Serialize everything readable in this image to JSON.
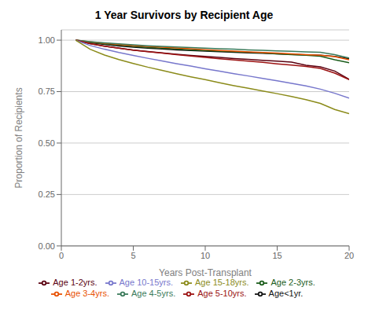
{
  "chart_data": {
    "type": "line",
    "title": "1 Year Survivors by Recipient Age",
    "xlabel": "Years Post-Transplant",
    "ylabel": "Proportion of Recipients",
    "xlim": [
      0,
      20
    ],
    "ylim": [
      0.0,
      1.05
    ],
    "xticks": [
      0,
      5,
      10,
      15,
      20
    ],
    "yticks": [
      {
        "value": 0,
        "label": "0.00"
      },
      0.25,
      {
        "value": 0.5,
        "label": "0.50"
      },
      0.75,
      {
        "value": 1,
        "label": "1.00"
      }
    ],
    "grid": true,
    "legend": "bottom",
    "x": [
      1,
      2,
      3,
      4,
      5,
      6,
      7,
      8,
      9,
      10,
      11,
      12,
      13,
      14,
      15,
      16,
      17,
      18,
      19,
      20
    ],
    "series": [
      {
        "name": "Age<1yr.",
        "color": "#111111",
        "values": [
          1.0,
          0.988,
          0.979,
          0.972,
          0.966,
          0.961,
          0.957,
          0.953,
          0.95,
          0.947,
          0.944,
          0.941,
          0.938,
          0.936,
          0.933,
          0.931,
          0.929,
          0.927,
          0.921,
          0.91
        ]
      },
      {
        "name": "Age 1-2yrs.",
        "color": "#5a0010",
        "values": [
          1.0,
          0.983,
          0.971,
          0.961,
          0.952,
          0.945,
          0.938,
          0.932,
          0.926,
          0.921,
          0.916,
          0.911,
          0.907,
          0.902,
          0.898,
          0.893,
          0.878,
          0.87,
          0.85,
          0.81
        ]
      },
      {
        "name": "Age 2-3yrs.",
        "color": "#1a5c1a",
        "values": [
          1.0,
          0.99,
          0.982,
          0.976,
          0.97,
          0.965,
          0.961,
          0.957,
          0.953,
          0.95,
          0.947,
          0.944,
          0.941,
          0.938,
          0.933,
          0.93,
          0.927,
          0.922,
          0.905,
          0.89
        ]
      },
      {
        "name": "Age 3-4yrs.",
        "color": "#e85000",
        "values": [
          1.0,
          0.992,
          0.985,
          0.979,
          0.974,
          0.97,
          0.966,
          0.962,
          0.958,
          0.954,
          0.95,
          0.947,
          0.943,
          0.94,
          0.937,
          0.933,
          0.93,
          0.927,
          0.92,
          0.905
        ]
      },
      {
        "name": "Age 4-5yrs.",
        "color": "#3a7a5a",
        "values": [
          1.0,
          0.993,
          0.987,
          0.982,
          0.977,
          0.973,
          0.97,
          0.967,
          0.964,
          0.961,
          0.958,
          0.956,
          0.953,
          0.951,
          0.948,
          0.946,
          0.943,
          0.941,
          0.93,
          0.913
        ]
      },
      {
        "name": "Age 5-10yrs.",
        "color": "#9b1111",
        "values": [
          1.0,
          0.983,
          0.971,
          0.961,
          0.952,
          0.944,
          0.937,
          0.93,
          0.923,
          0.916,
          0.91,
          0.904,
          0.898,
          0.892,
          0.885,
          0.879,
          0.872,
          0.863,
          0.84,
          0.808
        ]
      },
      {
        "name": "Age 10-15yrs.",
        "color": "#7777cc",
        "values": [
          1.0,
          0.974,
          0.956,
          0.94,
          0.926,
          0.912,
          0.899,
          0.886,
          0.874,
          0.861,
          0.849,
          0.837,
          0.826,
          0.814,
          0.803,
          0.79,
          0.778,
          0.762,
          0.742,
          0.718
        ]
      },
      {
        "name": "Age 15-18yrs.",
        "color": "#8b8b1a",
        "values": [
          1.0,
          0.956,
          0.928,
          0.906,
          0.887,
          0.869,
          0.853,
          0.837,
          0.822,
          0.808,
          0.793,
          0.779,
          0.766,
          0.753,
          0.74,
          0.726,
          0.711,
          0.693,
          0.663,
          0.643
        ]
      }
    ]
  }
}
